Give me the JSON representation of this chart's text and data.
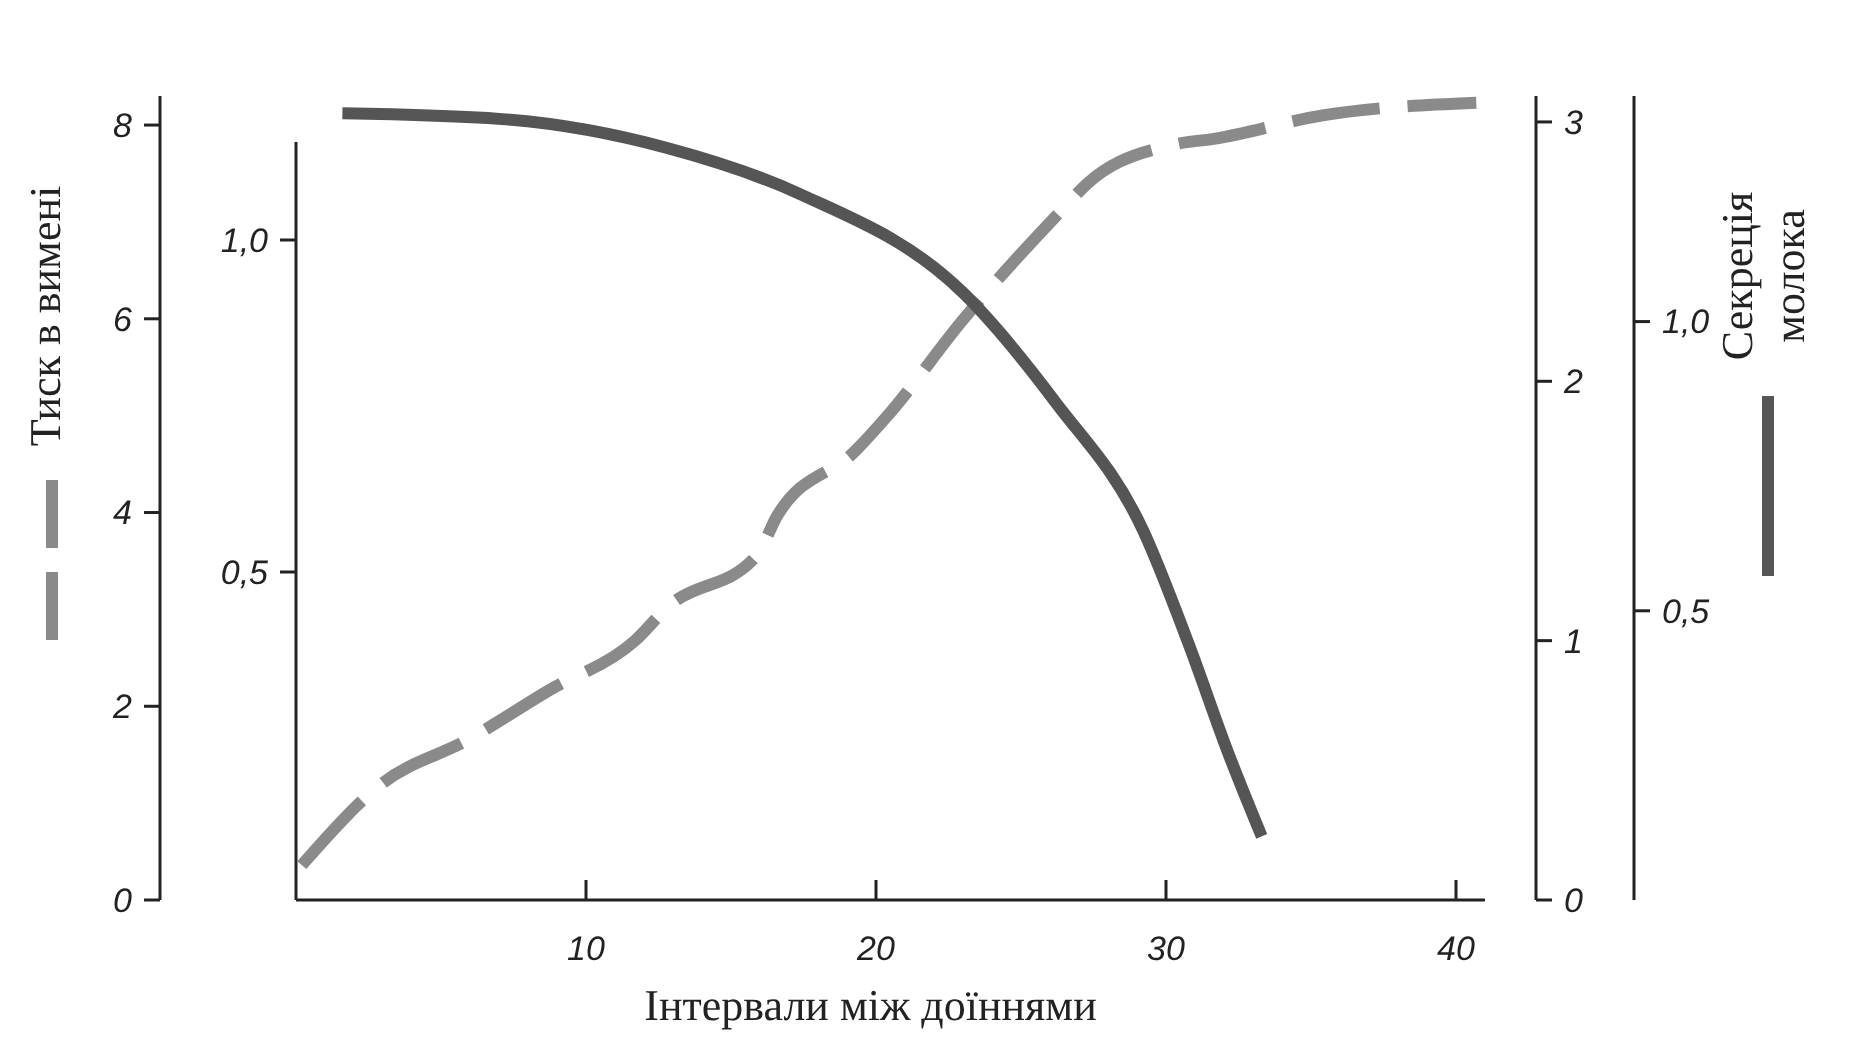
{
  "chart_data": {
    "type": "line",
    "xlabel": "Інтервали між доїннями",
    "ylabel": "Тиск в вимені",
    "y2label": "Секреція\nмолока",
    "xlim": [
      0,
      41
    ],
    "xticks": [
      {
        "value": 10,
        "label": "10"
      },
      {
        "value": 20,
        "label": "20"
      },
      {
        "value": 30,
        "label": "30"
      },
      {
        "value": 40,
        "label": "40"
      }
    ],
    "ylim": [
      0,
      8.3
    ],
    "yticks": [
      0,
      2,
      4,
      6,
      8
    ],
    "y2lim": [
      0,
      1.39
    ],
    "y2ticks": [
      {
        "value": 0.5,
        "label": "0,5"
      },
      {
        "value": 1,
        "label": "1,0"
      }
    ],
    "y3lim": [
      0,
      3.1
    ],
    "y3ticks": [
      0,
      1,
      2,
      3
    ],
    "annotations": [
      "1,0",
      "0,5"
    ],
    "series": [
      {
        "color": "#8a8a8a",
        "line_style": "dashed",
        "axis": "y",
        "x": [
          0.2,
          3.0,
          5.9,
          8.7,
          11.7,
          12.8,
          15.9,
          16.6,
          19.3,
          20.4,
          23.0,
          26.4,
          27.3,
          30.3,
          31.7,
          35.4,
          40.7
        ],
        "values": [
          0.36,
          1.21,
          1.65,
          2.16,
          2.68,
          3.02,
          3.56,
          3.97,
          4.64,
          5.0,
          5.99,
          7.12,
          7.4,
          7.8,
          7.86,
          8.1,
          8.23
        ]
      },
      {
        "color": "#555555",
        "line_style": "solid",
        "axis": "y2",
        "x": [
          1.6,
          7.1,
          12.8,
          17.4,
          23.0,
          26.2,
          29.2,
          30.8,
          32.1,
          33.3
        ],
        "values": [
          1.36,
          1.35,
          1.3,
          1.22,
          1.05,
          0.86,
          0.64,
          0.44,
          0.26,
          0.11
        ]
      }
    ],
    "grid": false
  }
}
